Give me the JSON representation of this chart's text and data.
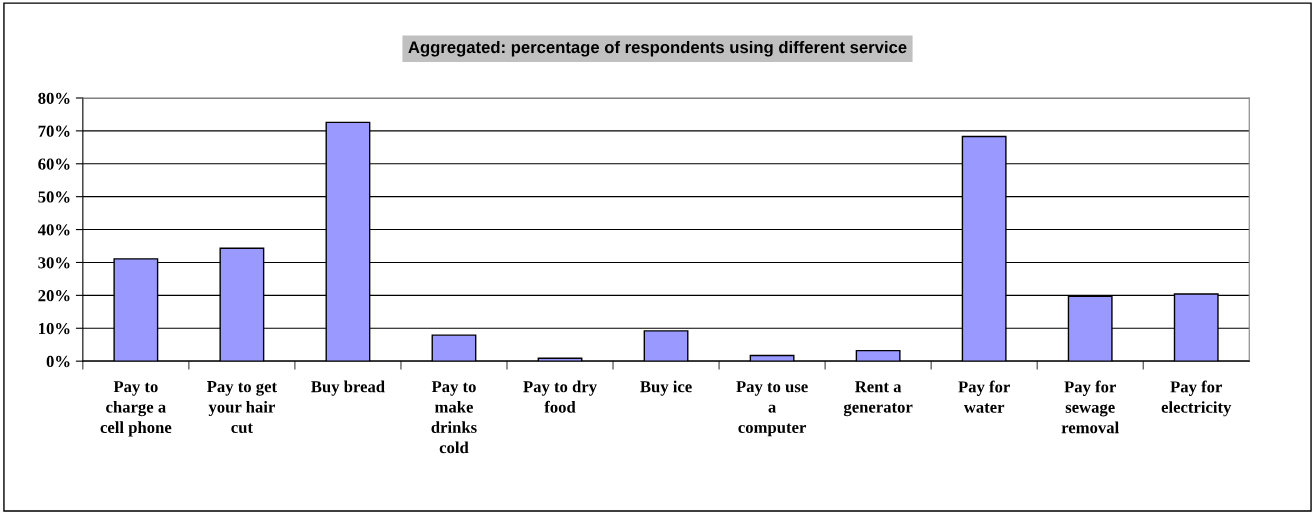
{
  "chart_data": {
    "type": "bar",
    "title": "Aggregated: percentage of respondents using different service",
    "categories": [
      "Pay to\ncharge a\ncell phone",
      "Pay to get\nyour hair\ncut",
      "Buy bread",
      "Pay to\nmake\ndrinks\ncold",
      "Pay to dry\nfood",
      "Buy ice",
      "Pay to use\na\ncomputer",
      "Rent a\ngenerator",
      "Pay for\nwater",
      "Pay for\nsewage\nremoval",
      "Pay for\nelectricity"
    ],
    "values": [
      31.1,
      34.3,
      72.6,
      7.9,
      0.9,
      9.2,
      1.7,
      3.2,
      68.3,
      19.7,
      20.4
    ],
    "color": "#9999ff",
    "ylim": [
      0,
      80
    ],
    "yticks": [
      {
        "value": 0,
        "label": "0%"
      },
      {
        "value": 10,
        "label": "10%"
      },
      {
        "value": 20,
        "label": "20%"
      },
      {
        "value": 30,
        "label": "30%"
      },
      {
        "value": 40,
        "label": "40%"
      },
      {
        "value": 50,
        "label": "50%"
      },
      {
        "value": 60,
        "label": "60%"
      },
      {
        "value": 70,
        "label": "70%"
      },
      {
        "value": 80,
        "label": "80%"
      }
    ],
    "grid": "y"
  }
}
